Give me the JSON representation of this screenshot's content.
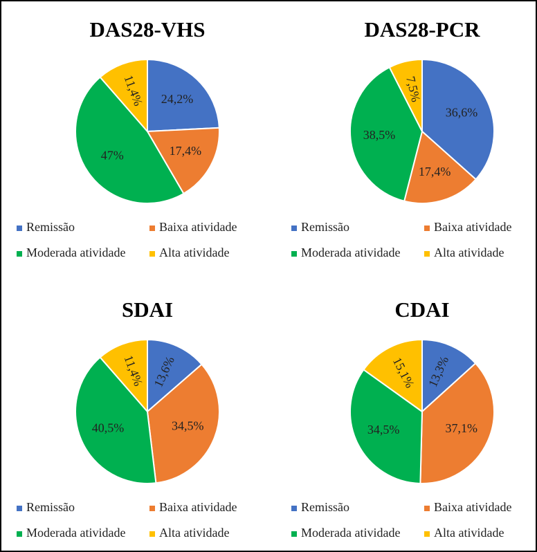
{
  "chart_data": [
    {
      "type": "pie",
      "title": "DAS28-VHS",
      "categories": [
        "Remissão",
        "Baixa atividade",
        "Moderada atividade",
        "Alta atividade"
      ],
      "values": [
        24.2,
        17.4,
        47,
        11.4
      ],
      "value_labels": [
        "24,2%",
        "17,4%",
        "47%",
        "11,4%"
      ],
      "colors": [
        "#4472c4",
        "#ed7d31",
        "#00b050",
        "#ffc000"
      ],
      "legend": "bottom"
    },
    {
      "type": "pie",
      "title": "DAS28-PCR",
      "categories": [
        "Remissão",
        "Baixa atividade",
        "Moderada atividade",
        "Alta atividade"
      ],
      "values": [
        36.6,
        17.4,
        38.5,
        7.5
      ],
      "value_labels": [
        "36,6%",
        "17,4%",
        "38,5%",
        "7,5%"
      ],
      "colors": [
        "#4472c4",
        "#ed7d31",
        "#00b050",
        "#ffc000"
      ],
      "legend": "bottom"
    },
    {
      "type": "pie",
      "title": "SDAI",
      "categories": [
        "Remissão",
        "Baixa atividade",
        "Moderada atividade",
        "Alta atividade"
      ],
      "values": [
        13.6,
        34.5,
        40.5,
        11.4
      ],
      "value_labels": [
        "13,6%",
        "34,5%",
        "40,5%",
        "11,4%"
      ],
      "colors": [
        "#4472c4",
        "#ed7d31",
        "#00b050",
        "#ffc000"
      ],
      "legend": "bottom"
    },
    {
      "type": "pie",
      "title": "CDAI",
      "categories": [
        "Remissão",
        "Baixa atividade",
        "Moderada atividade",
        "Alta atividade"
      ],
      "values": [
        13.3,
        37.1,
        34.5,
        15.1
      ],
      "value_labels": [
        "13,3%",
        "37,1%",
        "34,5%",
        "15,1%"
      ],
      "colors": [
        "#4472c4",
        "#ed7d31",
        "#00b050",
        "#ffc000"
      ],
      "legend": "bottom"
    }
  ]
}
